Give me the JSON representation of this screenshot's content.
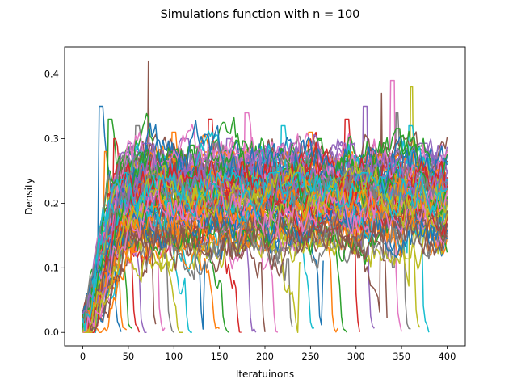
{
  "chart_data": {
    "type": "line",
    "title": "Simulations function with n = 100",
    "xlabel": "Iteratuinons",
    "ylabel": "Density",
    "xlim": [
      -20,
      420
    ],
    "ylim": [
      -0.021,
      0.442
    ],
    "xticks": [
      0,
      50,
      100,
      150,
      200,
      250,
      300,
      350,
      400
    ],
    "yticks": [
      0.0,
      0.1,
      0.2,
      0.3,
      0.4
    ],
    "xtick_labels": [
      "0",
      "50",
      "100",
      "150",
      "200",
      "250",
      "300",
      "350",
      "400"
    ],
    "ytick_labels": [
      "0.0",
      "0.1",
      "0.2",
      "0.3",
      "0.4"
    ],
    "grid": false,
    "legend": "none",
    "series_count": 100,
    "start_value": 0.01,
    "max_iterations": 400,
    "peak_density": 0.42,
    "typical_band": [
      0.1,
      0.35
    ],
    "colors": [
      "#1f77b4",
      "#ff7f0e",
      "#2ca02c",
      "#d62728",
      "#9467bd",
      "#8c564b",
      "#e377c2",
      "#7f7f7f",
      "#bcbd22",
      "#17becf"
    ],
    "series": [
      {
        "end_x": 42,
        "peak": 0.35,
        "peak_x": 20
      },
      {
        "end_x": 48,
        "peak": 0.28,
        "peak_x": 25
      },
      {
        "end_x": 55,
        "peak": 0.33,
        "peak_x": 30
      },
      {
        "end_x": 62,
        "peak": 0.3,
        "peak_x": 35
      },
      {
        "end_x": 70,
        "peak": 0.26,
        "peak_x": 40
      },
      {
        "end_x": 80,
        "peak": 0.42,
        "peak_x": 74
      },
      {
        "end_x": 90,
        "peak": 0.39,
        "peak_x": 95
      },
      {
        "end_x": 100,
        "peak": 0.32,
        "peak_x": 60
      },
      {
        "end_x": 110,
        "peak": 0.25,
        "peak_x": 55
      },
      {
        "end_x": 120,
        "peak": 0.27,
        "peak_x": 70
      },
      {
        "end_x": 135,
        "peak": 0.37,
        "peak_x": 135
      },
      {
        "end_x": 150,
        "peak": 0.31,
        "peak_x": 100
      },
      {
        "end_x": 160,
        "peak": 0.29,
        "peak_x": 120
      },
      {
        "end_x": 175,
        "peak": 0.33,
        "peak_x": 140
      },
      {
        "end_x": 190,
        "peak": 0.3,
        "peak_x": 160
      },
      {
        "end_x": 200,
        "peak": 0.36,
        "peak_x": 195
      },
      {
        "end_x": 215,
        "peak": 0.34,
        "peak_x": 180
      },
      {
        "end_x": 230,
        "peak": 0.38,
        "peak_x": 225
      },
      {
        "end_x": 240,
        "peak": 0.36,
        "peak_x": 240
      },
      {
        "end_x": 255,
        "peak": 0.32,
        "peak_x": 220
      },
      {
        "end_x": 265,
        "peak": 0.37,
        "peak_x": 265
      },
      {
        "end_x": 280,
        "peak": 0.31,
        "peak_x": 250
      },
      {
        "end_x": 290,
        "peak": 0.3,
        "peak_x": 260
      },
      {
        "end_x": 305,
        "peak": 0.33,
        "peak_x": 290
      },
      {
        "end_x": 320,
        "peak": 0.35,
        "peak_x": 310
      },
      {
        "end_x": 335,
        "peak": 0.37,
        "peak_x": 330
      },
      {
        "end_x": 350,
        "peak": 0.39,
        "peak_x": 340
      },
      {
        "end_x": 360,
        "peak": 0.34,
        "peak_x": 345
      },
      {
        "end_x": 370,
        "peak": 0.38,
        "peak_x": 362
      },
      {
        "end_x": 380,
        "peak": 0.32,
        "peak_x": 360
      }
    ]
  }
}
